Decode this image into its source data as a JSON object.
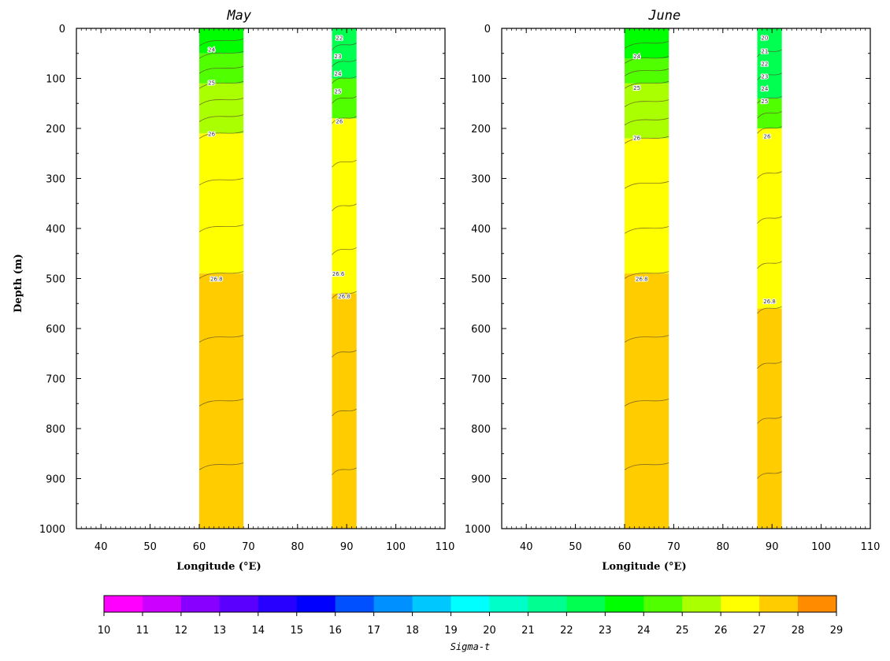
{
  "chart_data": [
    {
      "type": "heatmap",
      "title": "May",
      "xlabel": "Longitude (°E)",
      "ylabel": "Depth (m)",
      "xlim": [
        35,
        110
      ],
      "ylim": [
        1000,
        0
      ],
      "x_ticks": [
        "40",
        "50",
        "60",
        "70",
        "80",
        "90",
        "100",
        "110"
      ],
      "y_ticks": [
        "0",
        "100",
        "200",
        "300",
        "400",
        "500",
        "600",
        "700",
        "800",
        "900",
        "1000"
      ],
      "grid": false,
      "sections": [
        {
          "lon_range": [
            60,
            69
          ],
          "layers": [
            {
              "sigma_t": 23,
              "depth_top": 0,
              "depth_bottom": 50
            },
            {
              "sigma_t": 24,
              "depth_top": 50,
              "depth_bottom": 110
            },
            {
              "sigma_t": 25,
              "depth_top": 110,
              "depth_bottom": 210
            },
            {
              "sigma_t": 26,
              "depth_top": 210,
              "depth_bottom": 490
            },
            {
              "sigma_t": 27,
              "depth_top": 490,
              "depth_bottom": 1000
            }
          ],
          "contour_labels": [
            {
              "text": "24",
              "lon": 62.5,
              "depth": 42
            },
            {
              "text": "25",
              "lon": 62.5,
              "depth": 108
            },
            {
              "text": "26",
              "lon": 62.5,
              "depth": 210
            },
            {
              "text": "26.8",
              "lon": 63.5,
              "depth": 500
            }
          ]
        },
        {
          "lon_range": [
            87,
            92
          ],
          "layers": [
            {
              "sigma_t": 22,
              "depth_top": 0,
              "depth_bottom": 100
            },
            {
              "sigma_t": 24,
              "depth_top": 100,
              "depth_bottom": 180
            },
            {
              "sigma_t": 26,
              "depth_top": 180,
              "depth_bottom": 530
            },
            {
              "sigma_t": 27,
              "depth_top": 530,
              "depth_bottom": 1000
            }
          ],
          "contour_labels": [
            {
              "text": "22",
              "lon": 88.5,
              "depth": 18
            },
            {
              "text": "23",
              "lon": 88.2,
              "depth": 55
            },
            {
              "text": "24",
              "lon": 88.2,
              "depth": 90
            },
            {
              "text": "25",
              "lon": 88.2,
              "depth": 125
            },
            {
              "text": "26",
              "lon": 88.5,
              "depth": 185
            },
            {
              "text": "26.6",
              "lon": 88.3,
              "depth": 490
            },
            {
              "text": "26.8",
              "lon": 89.5,
              "depth": 535
            }
          ]
        }
      ]
    },
    {
      "type": "heatmap",
      "title": "June",
      "xlabel": "Longitude (°E)",
      "ylabel": "",
      "xlim": [
        35,
        110
      ],
      "ylim": [
        1000,
        0
      ],
      "x_ticks": [
        "40",
        "50",
        "60",
        "70",
        "80",
        "90",
        "100",
        "110"
      ],
      "y_ticks": [
        "0",
        "100",
        "200",
        "300",
        "400",
        "500",
        "600",
        "700",
        "800",
        "900",
        "1000"
      ],
      "grid": false,
      "sections": [
        {
          "lon_range": [
            60,
            69
          ],
          "layers": [
            {
              "sigma_t": 23,
              "depth_top": 0,
              "depth_bottom": 60
            },
            {
              "sigma_t": 24,
              "depth_top": 60,
              "depth_bottom": 110
            },
            {
              "sigma_t": 25,
              "depth_top": 110,
              "depth_bottom": 220
            },
            {
              "sigma_t": 26,
              "depth_top": 220,
              "depth_bottom": 490
            },
            {
              "sigma_t": 27,
              "depth_top": 490,
              "depth_bottom": 1000
            }
          ],
          "contour_labels": [
            {
              "text": "24",
              "lon": 62.5,
              "depth": 55
            },
            {
              "text": "25",
              "lon": 62.5,
              "depth": 118
            },
            {
              "text": "26",
              "lon": 62.5,
              "depth": 218
            },
            {
              "text": "26.8",
              "lon": 63.5,
              "depth": 500
            }
          ]
        },
        {
          "lon_range": [
            87,
            92
          ],
          "layers": [
            {
              "sigma_t": 22,
              "depth_top": 0,
              "depth_bottom": 140
            },
            {
              "sigma_t": 24,
              "depth_top": 140,
              "depth_bottom": 200
            },
            {
              "sigma_t": 26,
              "depth_top": 200,
              "depth_bottom": 560
            },
            {
              "sigma_t": 27,
              "depth_top": 560,
              "depth_bottom": 1000
            }
          ],
          "contour_labels": [
            {
              "text": "20",
              "lon": 88.5,
              "depth": 18
            },
            {
              "text": "21",
              "lon": 88.5,
              "depth": 45
            },
            {
              "text": "22",
              "lon": 88.5,
              "depth": 70
            },
            {
              "text": "23",
              "lon": 88.5,
              "depth": 95
            },
            {
              "text": "24",
              "lon": 88.5,
              "depth": 120
            },
            {
              "text": "25",
              "lon": 88.5,
              "depth": 145
            },
            {
              "text": "26",
              "lon": 89,
              "depth": 215
            },
            {
              "text": "26.8",
              "lon": 89.5,
              "depth": 545
            }
          ]
        }
      ]
    }
  ],
  "colorbar": {
    "label": "Sigma-t",
    "ticks": [
      "10",
      "11",
      "12",
      "13",
      "14",
      "15",
      "16",
      "17",
      "18",
      "19",
      "20",
      "21",
      "22",
      "23",
      "24",
      "25",
      "26",
      "27",
      "28",
      "29"
    ],
    "colors": [
      "#ff00ff",
      "#cc00ff",
      "#8800ff",
      "#5a00ff",
      "#2800ff",
      "#0000ff",
      "#0050ff",
      "#0090ff",
      "#00c8ff",
      "#00ffff",
      "#00ffc8",
      "#00ff90",
      "#00ff50",
      "#00ff00",
      "#50ff00",
      "#aaff00",
      "#ffff00",
      "#ffcc00",
      "#ff8c00",
      "#ff4400"
    ]
  }
}
